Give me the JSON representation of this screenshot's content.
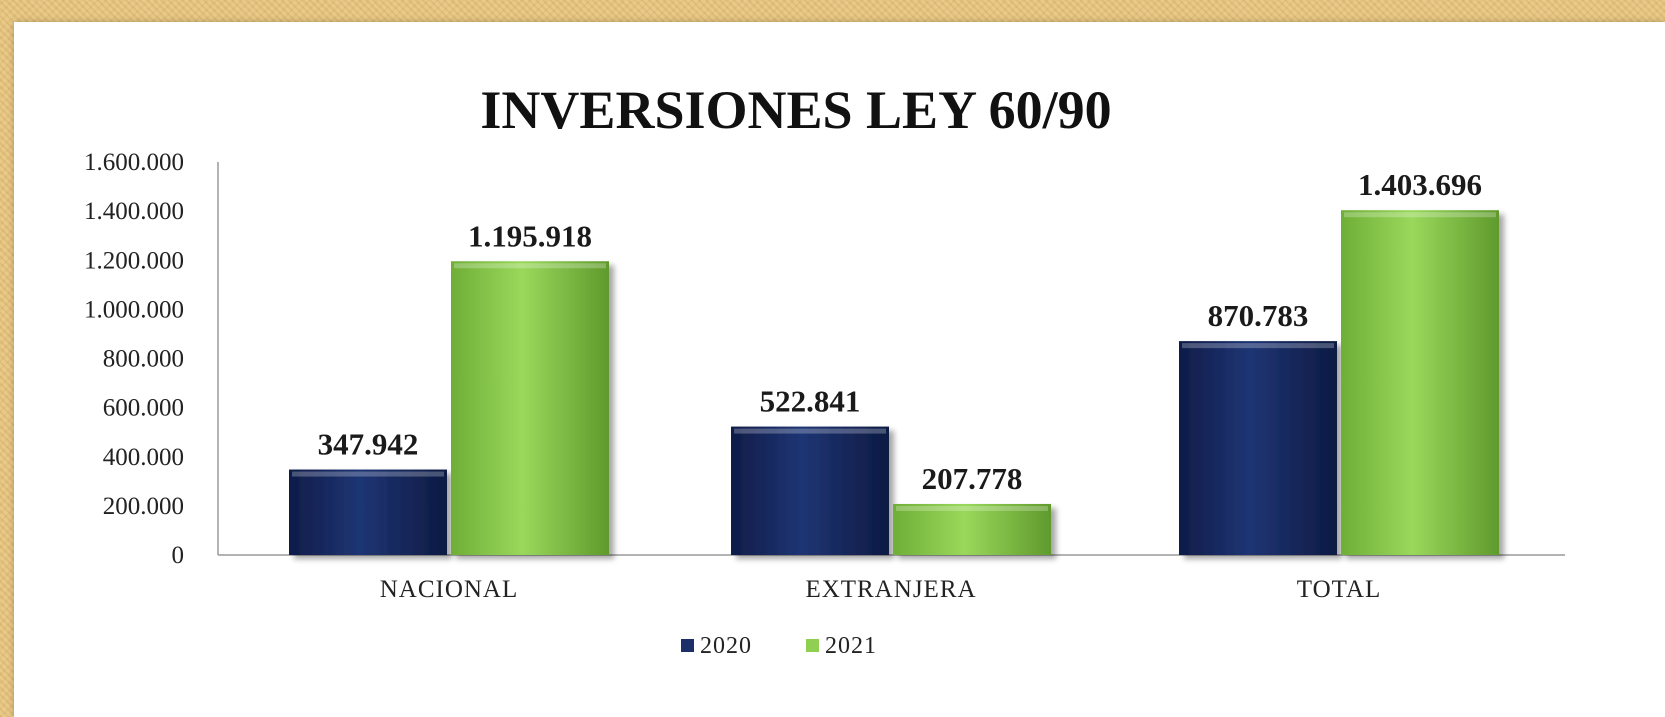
{
  "chart_data": {
    "type": "bar",
    "title": "INVERSIONES LEY 60/90",
    "categories": [
      "NACIONAL",
      "EXTRANJERA",
      "TOTAL"
    ],
    "series": [
      {
        "name": "2020",
        "values": [
          347942,
          522841,
          870783
        ],
        "labels": [
          "347.942",
          "522.841",
          "870.783"
        ],
        "color": "#1c2f6b"
      },
      {
        "name": "2021",
        "values": [
          1195918,
          207778,
          1403696
        ],
        "labels": [
          "1.195.918",
          "207.778",
          "1.403.696"
        ],
        "color": "#8fd052"
      }
    ],
    "ylim": [
      0,
      1600000
    ],
    "yticks": [
      0,
      200000,
      400000,
      600000,
      800000,
      1000000,
      1200000,
      1400000,
      1600000
    ],
    "ytick_labels": [
      "0",
      "200.000",
      "400.000",
      "600.000",
      "800.000",
      "1.000.000",
      "1.200.000",
      "1.400.000",
      "1.600.000"
    ],
    "grid": false,
    "legend_position": "bottom"
  }
}
